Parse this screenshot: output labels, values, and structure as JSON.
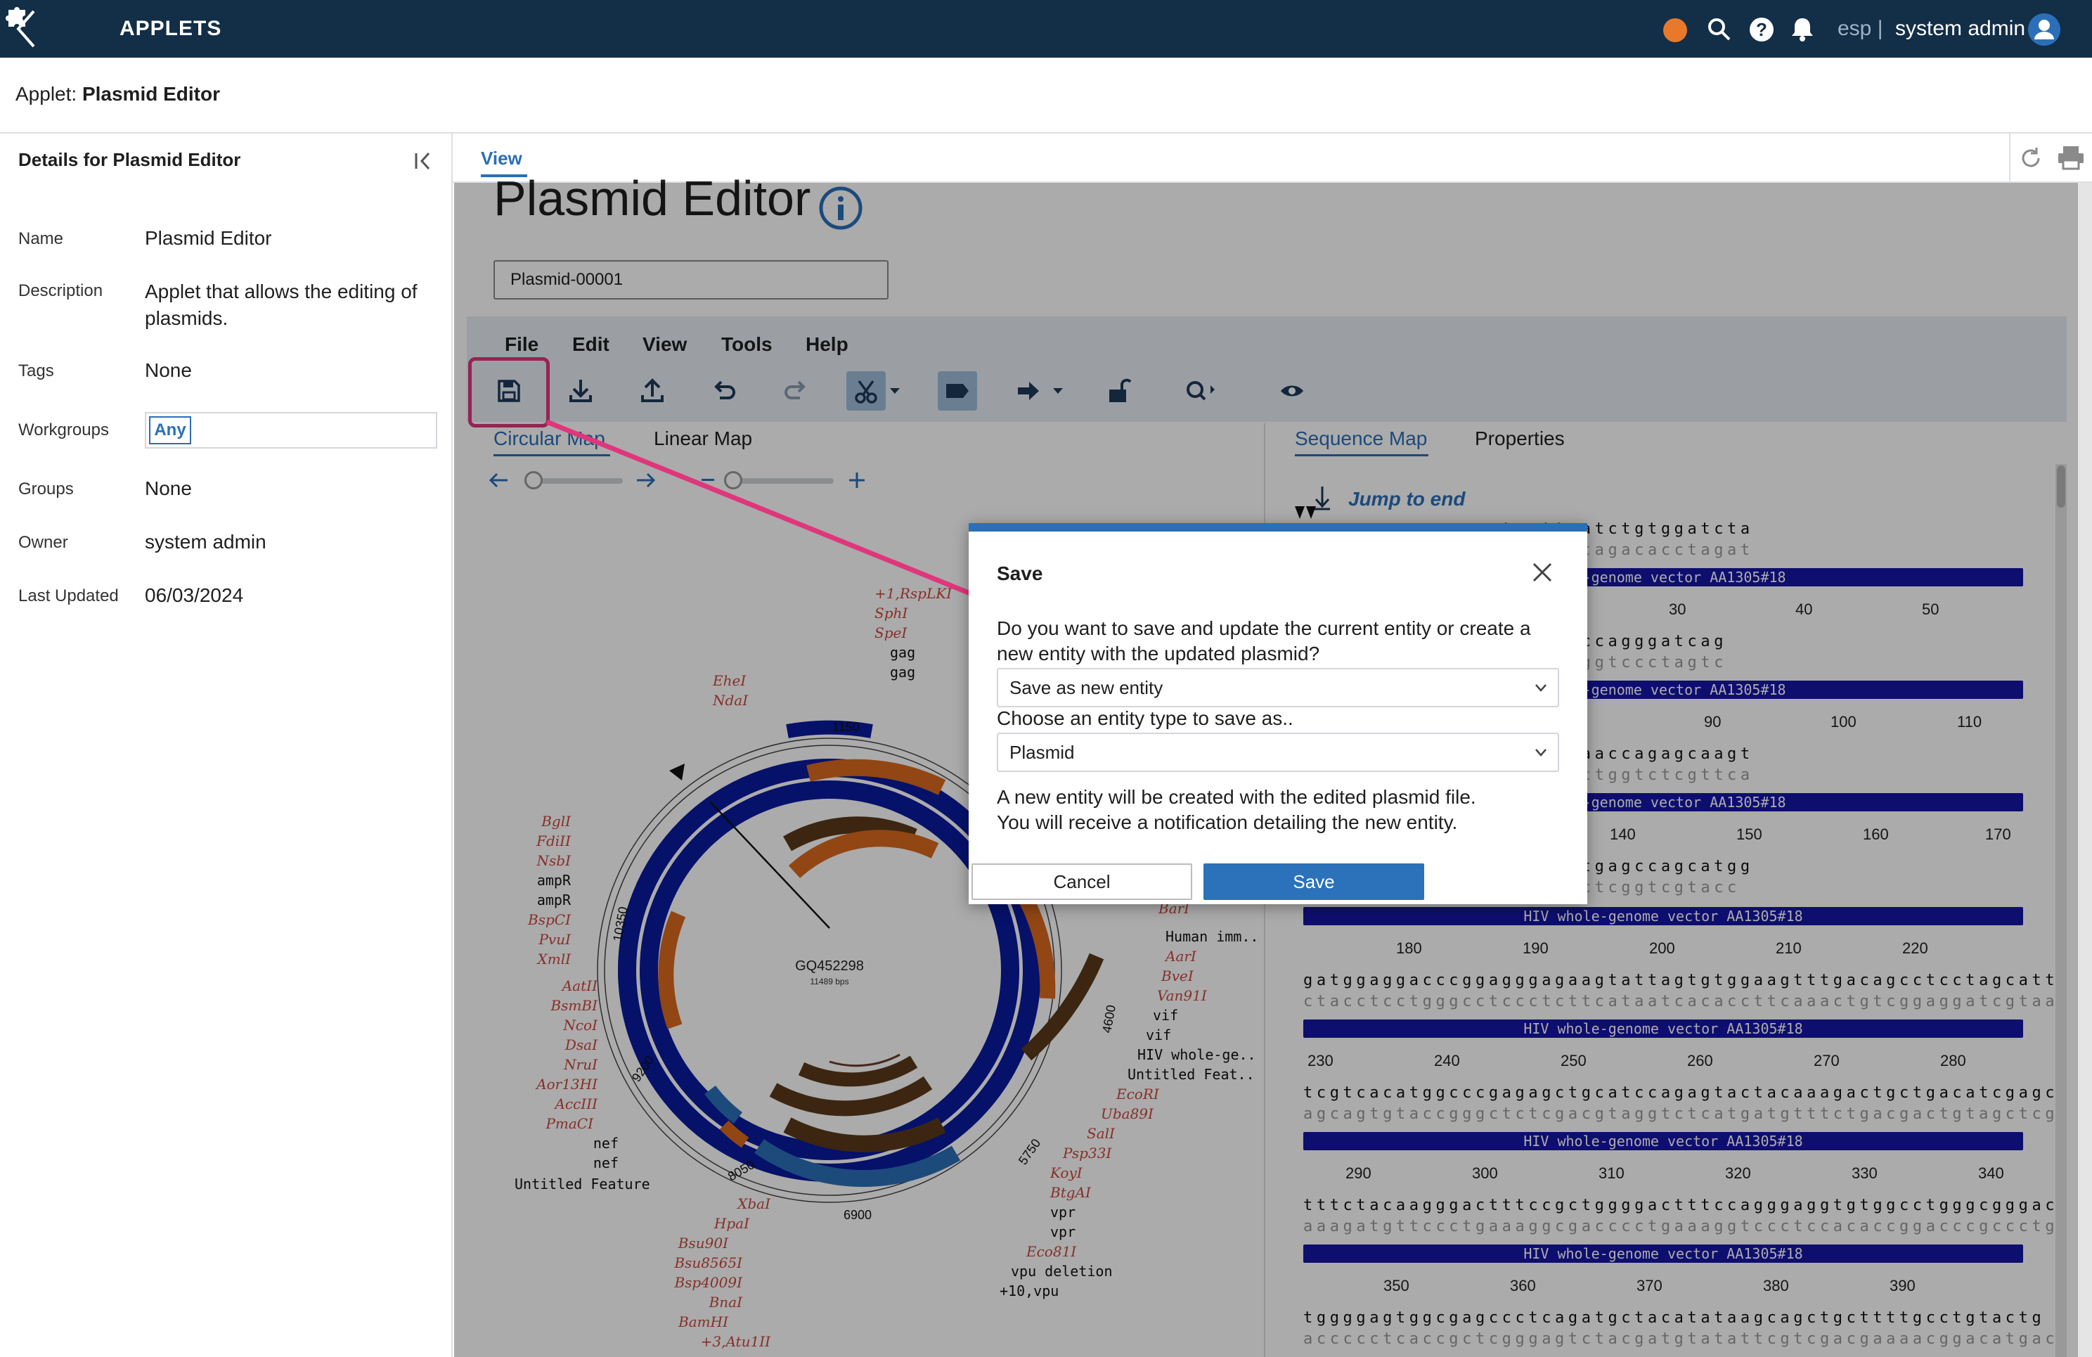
{
  "topbar": {
    "title": "APPLETS",
    "lang": "esp |",
    "user": "system admin",
    "status_color": "#e8792a",
    "icons": [
      "back-icon",
      "puzzle-icon",
      "search-icon",
      "help-icon",
      "bell-icon",
      "user-icon"
    ]
  },
  "applet_header": {
    "prefix": "Applet:",
    "name": "Plasmid Editor"
  },
  "details": {
    "title": "Details for Plasmid Editor",
    "fields": [
      {
        "label": "Name",
        "value": "Plasmid Editor"
      },
      {
        "label": "Description",
        "value": "Applet that allows the editing of plasmids."
      },
      {
        "label": "Tags",
        "value": "None"
      },
      {
        "label": "Workgroups",
        "value": "Any"
      },
      {
        "label": "Groups",
        "value": "None"
      },
      {
        "label": "Owner",
        "value": "system admin"
      },
      {
        "label": "Last Updated",
        "value": "06/03/2024"
      }
    ]
  },
  "main": {
    "tab": "View",
    "page_title": "Plasmid Editor",
    "entity_name": "Plasmid-00001",
    "menu": [
      "File",
      "Edit",
      "View",
      "Tools",
      "Help"
    ],
    "left_tabs": [
      "Circular Map",
      "Linear Map"
    ],
    "right_tabs": [
      "Sequence Map",
      "Properties"
    ],
    "jump_to_end": "Jump to end"
  },
  "map": {
    "name": "GQ452298",
    "length": "11489 bps",
    "ring_labels": [
      "1150",
      "10350",
      "9200",
      "8050",
      "6900",
      "5750",
      "4600"
    ],
    "enzymes_top": [
      "+1,RspLKI",
      "SphI",
      "SpeI"
    ],
    "feat_top": [
      "gag",
      "gag"
    ],
    "enzymes_left1": [
      "EheI",
      "NdaI"
    ],
    "enzymes_left2": [
      "BglI",
      "FdiII",
      "NsbI"
    ],
    "feat_left2": [
      "ampR",
      "ampR"
    ],
    "enzymes_left3": [
      "BspCI",
      "PvuI",
      "XmlI"
    ],
    "enzymes_left4": [
      "AatII",
      "BsmBI",
      "NcoI",
      "DsaI",
      "NruI",
      "Aor13HI",
      "AccIII",
      "PmaCI"
    ],
    "feat_left4": [
      "nef",
      "nef",
      "Untitled Feature"
    ],
    "enzymes_bottom_left": [
      "XbaI",
      "HpaI",
      "Bsu90I",
      "Bsu8565I",
      "Bsp4009I",
      "BnaI",
      "BamHI",
      "+3,Atu1II"
    ],
    "right_labels": [
      "BarI",
      "Human imm..",
      "AarI",
      "BveI",
      "Van91I",
      "vif",
      "vif",
      "HIV whole-ge..",
      "Untitled Feat..",
      "EcoRI",
      "Uba89I",
      "SalI",
      "Psp33I",
      "KoyI",
      "BtgAI",
      "vpr",
      "vpr",
      "Eco81I",
      "vpu deletion",
      "+10,vpu"
    ]
  },
  "sequence": {
    "feature_label": "whole-genome vector AA1305#18",
    "feature_label_full": "HIV whole-genome vector AA1305#18",
    "rows": [
      {
        "top": "aaaaaagacaagagatccttgatctgtggatcta",
        "bottom": "ttttttctgttctctaggaactagacacctagat",
        "ticks": [
          "30",
          "40",
          "50"
        ]
      },
      {
        "top": "attggcagaactacaccagggccagggatcag",
        "bottom": "taaccgtcttgatgtggtcccggtccctagtc",
        "ticks": [
          "90",
          "100",
          "110"
        ]
      },
      {
        "top": "gcttcaagttagtaccagttgaaccagagcaagt",
        "bottom": "cgaagttcaatcatggtcaacttggtctcgttca",
        "ticks": [
          "140",
          "150",
          "160",
          "170"
        ]
      },
      {
        "top": "gaacagctttgttacaccctatgagccagcatgg",
        "bottom": "cttgtcgaacaatgtgggatactcggtcgtacc",
        "ticks": [
          "180",
          "190",
          "200",
          "210",
          "220"
        ]
      },
      {
        "top": "gatggaggacccggagggagaagtattagtgtggaagtttgacagcctcctagcatt",
        "bottom": "ctacctcctgggcctccctcttcataatcacaccttcaaactgtcggaggatcgtaa",
        "ticks": [
          "230",
          "240",
          "250",
          "260",
          "270",
          "280"
        ]
      },
      {
        "top": "tcgtcacatggcccgagagctgcatccagagtactacaaagactgctgacatcgagc",
        "bottom": "agcagtgtaccgggctctcgacgtaggtctcatgatgtttctgacgactgtagctcg",
        "ticks": [
          "290",
          "300",
          "310",
          "320",
          "330",
          "340"
        ]
      },
      {
        "top": "tttctacaagggactttccgctggggactttccagggaggtgtggcctgggcgggac",
        "bottom": "aaagatgttccctgaaaggcgacccctgaaaggtccctccacaccggacccgccctg",
        "ticks": [
          "350",
          "360",
          "370",
          "380",
          "390"
        ]
      },
      {
        "top": "tggggagtggcgagccctcagatgctacatataagcagctgcttttgcctgtactg",
        "bottom": "accccctcaccgctcgggagtctacgatgtatattcgtcgacgaaaacggacatgac",
        "ticks": []
      }
    ]
  },
  "dialog": {
    "title": "Save",
    "question": "Do you want to save and update the current entity or create a new entity with the updated plasmid?",
    "option1_selected": "Save as new entity",
    "choose_label": "Choose an entity type to save as..",
    "option2_selected": "Plasmid",
    "info_line1": "A new entity will be created with the edited plasmid file.",
    "info_line2": "You will receive a notification detailing the new entity.",
    "cancel": "Cancel",
    "save": "Save"
  },
  "colors": {
    "header": "#132e47",
    "accent": "#2a6fb8",
    "highlight": "#e0367c",
    "dark_ring": "#0a1a9e"
  }
}
